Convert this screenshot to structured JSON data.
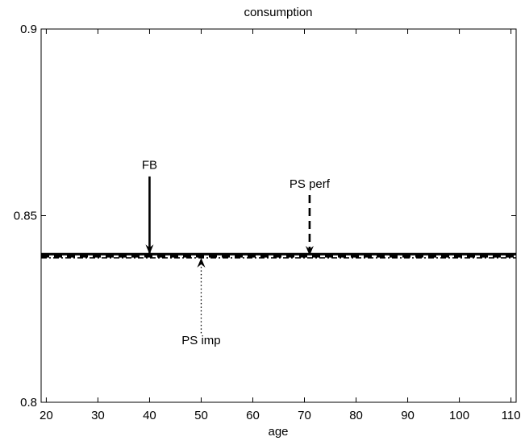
{
  "chart_data": {
    "type": "line",
    "title": "consumption",
    "xlabel": "age",
    "ylabel": "",
    "xlim": [
      19,
      111
    ],
    "ylim": [
      0.8,
      0.9
    ],
    "xticks": [
      20,
      30,
      40,
      50,
      60,
      70,
      80,
      90,
      100,
      110
    ],
    "yticks": [
      0.8,
      0.85,
      0.9
    ],
    "ytick_labels": [
      "0.8",
      "0.85",
      "0.9"
    ],
    "grid": false,
    "series": [
      {
        "name": "FB",
        "style": "solid",
        "x": [
          19,
          111
        ],
        "y": [
          0.8397,
          0.8397
        ]
      },
      {
        "name": "PS perf",
        "style": "dashed",
        "x": [
          19,
          111
        ],
        "y": [
          0.8391,
          0.8391
        ]
      },
      {
        "name": "PS imp",
        "style": "dashdot",
        "x": [
          19,
          111
        ],
        "y": [
          0.8387,
          0.8387
        ]
      }
    ],
    "annotations": [
      {
        "text": "FB",
        "series": "FB",
        "style": "solid",
        "tail": [
          40,
          0.8605
        ],
        "head": [
          40,
          0.8397
        ],
        "text_pos": [
          40,
          0.8625
        ]
      },
      {
        "text": "PS perf",
        "series": "PS perf",
        "style": "dashed",
        "tail": [
          71,
          0.8555
        ],
        "head": [
          71,
          0.8393
        ],
        "text_pos": [
          71,
          0.8575
        ]
      },
      {
        "text": "PS imp",
        "series": "PS imp",
        "style": "dotted",
        "tail": [
          50,
          0.8185
        ],
        "head": [
          50,
          0.8387
        ],
        "text_pos": [
          50,
          0.8155
        ]
      }
    ]
  }
}
